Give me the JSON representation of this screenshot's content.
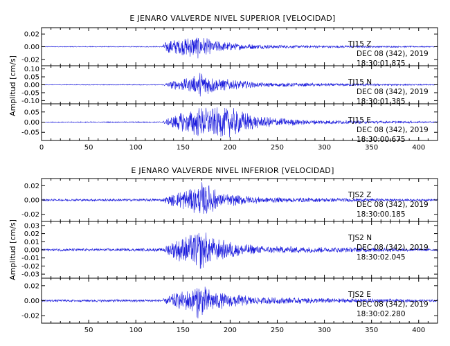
{
  "colors": {
    "trace": "#1a1adc",
    "axis": "#000000"
  },
  "chart_data": [
    {
      "type": "line",
      "title": "E JENARO VALVERDE NIVEL SUPERIOR [VELOCIDAD]",
      "ylabel": "Amplitud [cm/s]",
      "xlabel": "",
      "xlim": [
        0,
        420
      ],
      "xticks": [
        0,
        50,
        100,
        150,
        200,
        250,
        300,
        350,
        400
      ],
      "grid": false,
      "traces": [
        {
          "station": "TJ15",
          "component": "Z",
          "date": "DEC 08 (342), 2019",
          "time": "18:30:01.875",
          "ylim": [
            -0.03,
            0.03
          ],
          "yticks": [
            {
              "v": 0.02,
              "l": "0.02"
            },
            {
              "v": 0.0,
              "l": "0.00"
            },
            {
              "v": -0.02,
              "l": "-0.02"
            }
          ],
          "envelope": [
            {
              "t": 0,
              "a": 0.0006
            },
            {
              "t": 128,
              "a": 0.0008
            },
            {
              "t": 133,
              "a": 0.011
            },
            {
              "t": 150,
              "a": 0.014
            },
            {
              "t": 165,
              "a": 0.02
            },
            {
              "t": 180,
              "a": 0.011
            },
            {
              "t": 210,
              "a": 0.005
            },
            {
              "t": 260,
              "a": 0.0025
            },
            {
              "t": 420,
              "a": 0.0008
            }
          ]
        },
        {
          "station": "TJ15",
          "component": "N",
          "date": "DEC 08 (342), 2019",
          "time": "18:30:01.385",
          "ylim": [
            -0.12,
            0.12
          ],
          "yticks": [
            {
              "v": 0.1,
              "l": "0.10"
            },
            {
              "v": 0.05,
              "l": "0.05"
            },
            {
              "v": 0.0,
              "l": "0.00"
            },
            {
              "v": -0.05,
              "l": "-0.05"
            },
            {
              "v": -0.1,
              "l": "-0.10"
            }
          ],
          "envelope": [
            {
              "t": 0,
              "a": 0.002
            },
            {
              "t": 128,
              "a": 0.003
            },
            {
              "t": 140,
              "a": 0.03
            },
            {
              "t": 160,
              "a": 0.05
            },
            {
              "t": 170,
              "a": 0.09
            },
            {
              "t": 185,
              "a": 0.045
            },
            {
              "t": 230,
              "a": 0.015
            },
            {
              "t": 420,
              "a": 0.003
            }
          ]
        },
        {
          "station": "TJ15",
          "component": "E",
          "date": "DEC 08 (342), 2019",
          "time": "18:30:00.675",
          "ylim": [
            -0.09,
            0.09
          ],
          "yticks": [
            {
              "v": 0.05,
              "l": "0.05"
            },
            {
              "v": 0.0,
              "l": "0.00"
            },
            {
              "v": -0.05,
              "l": "-0.05"
            }
          ],
          "envelope": [
            {
              "t": 0,
              "a": 0.002
            },
            {
              "t": 128,
              "a": 0.003
            },
            {
              "t": 140,
              "a": 0.035
            },
            {
              "t": 165,
              "a": 0.075
            },
            {
              "t": 200,
              "a": 0.075
            },
            {
              "t": 230,
              "a": 0.03
            },
            {
              "t": 280,
              "a": 0.012
            },
            {
              "t": 420,
              "a": 0.003
            }
          ]
        }
      ]
    },
    {
      "type": "line",
      "title": "E JENARO VALVERDE NIVEL INFERIOR [VELOCIDAD]",
      "ylabel": "Amplitud [cm/s]",
      "xlabel": "",
      "xlim": [
        0,
        420
      ],
      "xticks": [
        50,
        100,
        150,
        200,
        250,
        300,
        350,
        400
      ],
      "grid": false,
      "traces": [
        {
          "station": "TJS2",
          "component": "Z",
          "date": "DEC 08 (342), 2019",
          "time": "18:30:00.185",
          "ylim": [
            -0.03,
            0.03
          ],
          "yticks": [
            {
              "v": 0.02,
              "l": "0.02"
            },
            {
              "v": 0.0,
              "l": "0.00"
            },
            {
              "v": -0.02,
              "l": "-0.02"
            }
          ],
          "envelope": [
            {
              "t": 0,
              "a": 0.0015
            },
            {
              "t": 128,
              "a": 0.002
            },
            {
              "t": 140,
              "a": 0.01
            },
            {
              "t": 165,
              "a": 0.02
            },
            {
              "t": 172,
              "a": 0.028
            },
            {
              "t": 190,
              "a": 0.01
            },
            {
              "t": 240,
              "a": 0.004
            },
            {
              "t": 420,
              "a": 0.0012
            }
          ]
        },
        {
          "station": "TJS2",
          "component": "N",
          "date": "DEC 08 (342), 2019",
          "time": "18:30:02.045",
          "ylim": [
            -0.035,
            0.035
          ],
          "yticks": [
            {
              "v": 0.03,
              "l": "0.03"
            },
            {
              "v": 0.02,
              "l": "0.02"
            },
            {
              "v": 0.01,
              "l": "0.01"
            },
            {
              "v": 0.0,
              "l": "0.00"
            },
            {
              "v": -0.01,
              "l": "-0.01"
            },
            {
              "v": -0.02,
              "l": "-0.02"
            },
            {
              "v": -0.03,
              "l": "-0.03"
            }
          ],
          "envelope": [
            {
              "t": 0,
              "a": 0.0015
            },
            {
              "t": 128,
              "a": 0.002
            },
            {
              "t": 140,
              "a": 0.012
            },
            {
              "t": 160,
              "a": 0.02
            },
            {
              "t": 168,
              "a": 0.028
            },
            {
              "t": 185,
              "a": 0.014
            },
            {
              "t": 230,
              "a": 0.005
            },
            {
              "t": 420,
              "a": 0.0015
            }
          ]
        },
        {
          "station": "TJS2",
          "component": "E",
          "date": "DEC 08 (342), 2019",
          "time": "18:30:02.280",
          "ylim": [
            -0.03,
            0.03
          ],
          "yticks": [
            {
              "v": 0.02,
              "l": "0.02"
            },
            {
              "v": 0.0,
              "l": "0.00"
            },
            {
              "v": -0.02,
              "l": "-0.02"
            }
          ],
          "envelope": [
            {
              "t": 0,
              "a": 0.0015
            },
            {
              "t": 128,
              "a": 0.002
            },
            {
              "t": 140,
              "a": 0.01
            },
            {
              "t": 160,
              "a": 0.016
            },
            {
              "t": 165,
              "a": 0.026
            },
            {
              "t": 185,
              "a": 0.012
            },
            {
              "t": 230,
              "a": 0.005
            },
            {
              "t": 420,
              "a": 0.0015
            }
          ]
        }
      ]
    }
  ]
}
